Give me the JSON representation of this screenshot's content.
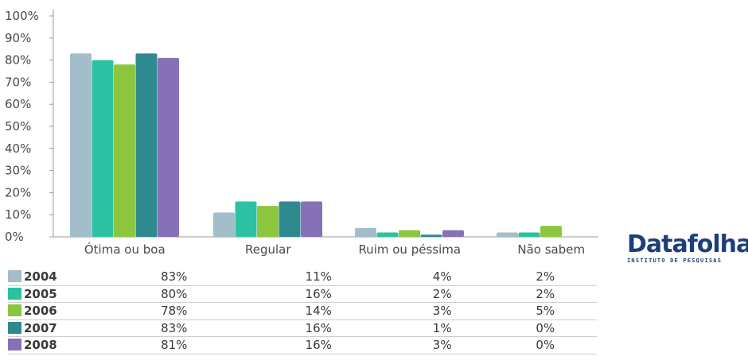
{
  "chart_data": {
    "type": "bar",
    "categories": [
      "Ótima ou boa",
      "Regular",
      "Ruim ou péssima",
      "Não sabem"
    ],
    "series": [
      {
        "name": "2004",
        "values": [
          83,
          11,
          4,
          2
        ],
        "color": "#a3bdcb",
        "labels": [
          "83%",
          "11%",
          "4%",
          "2%"
        ]
      },
      {
        "name": "2005",
        "values": [
          80,
          16,
          2,
          2
        ],
        "color": "#2cc2a1",
        "labels": [
          "80%",
          "16%",
          "2%",
          "2%"
        ]
      },
      {
        "name": "2006",
        "values": [
          78,
          14,
          3,
          5
        ],
        "color": "#8cc63f",
        "labels": [
          "78%",
          "14%",
          "3%",
          "5%"
        ]
      },
      {
        "name": "2007",
        "values": [
          83,
          16,
          1,
          0
        ],
        "color": "#2e8a8e",
        "labels": [
          "83%",
          "16%",
          "1%",
          "0%"
        ]
      },
      {
        "name": "2008",
        "values": [
          81,
          16,
          3,
          0
        ],
        "color": "#8671b8",
        "labels": [
          "81%",
          "16%",
          "3%",
          "0%"
        ]
      }
    ],
    "yticks": [
      "0%",
      "10%",
      "20%",
      "30%",
      "40%",
      "50%",
      "60%",
      "70%",
      "80%",
      "90%",
      "100%"
    ],
    "ylim": [
      0,
      100
    ],
    "grid": false,
    "legend": "table below chart"
  },
  "logo": {
    "name": "Datafolha",
    "tagline": "INSTITUTO DE PESQUISAS"
  }
}
